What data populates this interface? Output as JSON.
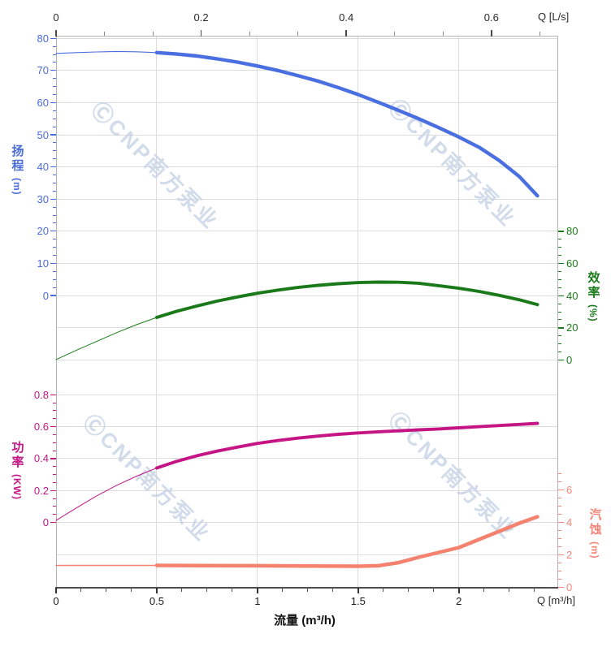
{
  "watermark": {
    "text": "ⒸCNP南方泵业",
    "color": "#c6d3e6"
  },
  "axes": {
    "flow_top": {
      "unit_label": "Q [L/s]",
      "tick_labels": [
        "0",
        "0.2",
        "0.4",
        "0.6"
      ],
      "tick_values": [
        0,
        0.2,
        0.4,
        0.6
      ],
      "max": 0.69,
      "color": "#2b2b2b"
    },
    "flow_bottom": {
      "unit_label": "Q [m³/h]",
      "axis_title": "流量 (m³/h)",
      "tick_labels": [
        "0",
        "0.5",
        "1",
        "1.5",
        "2"
      ],
      "tick_values": [
        0,
        0.5,
        1,
        1.5,
        2
      ],
      "max": 2.49,
      "color": "#1a1a1a"
    },
    "head": {
      "title": "扬程",
      "unit": "(m)",
      "color": "#4a6bdb",
      "tick_labels": [
        "80",
        "70",
        "60",
        "50",
        "40",
        "30",
        "20",
        "10",
        "0"
      ],
      "tick_values": [
        80,
        70,
        60,
        50,
        40,
        30,
        20,
        10,
        0
      ],
      "range": [
        0,
        80
      ]
    },
    "efficiency": {
      "title": "效率",
      "unit": "(%)",
      "color": "#1a7a1a",
      "tick_labels": [
        "80",
        "60",
        "40",
        "20",
        "0"
      ],
      "tick_values": [
        80,
        60,
        40,
        20,
        0
      ],
      "range": [
        0,
        80
      ]
    },
    "power": {
      "title": "功率",
      "unit": "(KW)",
      "color": "#c51585",
      "tick_labels": [
        "0.8",
        "0.6",
        "0.4",
        "0.2",
        "0"
      ],
      "tick_values": [
        0.8,
        0.6,
        0.4,
        0.2,
        0
      ],
      "range": [
        0,
        0.8
      ]
    },
    "npsh": {
      "title": "汽蚀",
      "unit": "(m)",
      "color": "#f48678",
      "tick_labels": [
        "6",
        "4",
        "2",
        "0"
      ],
      "tick_values": [
        6,
        4,
        2,
        0
      ],
      "range": [
        0,
        6
      ]
    }
  },
  "chart_data": {
    "type": "line",
    "title": "",
    "xlabel": "流量 (m³/h)",
    "x_range": [
      0,
      2.49
    ],
    "x_secondary_unit": "Q [L/s]",
    "x_secondary_range": [
      0,
      0.69
    ],
    "grid": true,
    "series": [
      {
        "name": "扬程 (m)",
        "axis": "head",
        "unit": "m",
        "color": "#4a6fe0",
        "thin_until": 0.5,
        "points": [
          [
            0,
            75.3
          ],
          [
            0.1,
            75.55
          ],
          [
            0.2,
            75.75
          ],
          [
            0.3,
            75.9
          ],
          [
            0.4,
            75.8
          ],
          [
            0.5,
            75.55
          ],
          [
            0.6,
            75.1
          ],
          [
            0.7,
            74.5
          ],
          [
            0.8,
            73.6
          ],
          [
            0.9,
            72.6
          ],
          [
            1.0,
            71.4
          ],
          [
            1.1,
            70.0
          ],
          [
            1.2,
            68.4
          ],
          [
            1.3,
            66.7
          ],
          [
            1.4,
            64.7
          ],
          [
            1.5,
            62.5
          ],
          [
            1.6,
            60.1
          ],
          [
            1.7,
            57.6
          ],
          [
            1.8,
            55.0
          ],
          [
            1.9,
            52.2
          ],
          [
            2.0,
            49.3
          ],
          [
            2.1,
            46.1
          ],
          [
            2.2,
            42.0
          ],
          [
            2.3,
            37.0
          ],
          [
            2.39,
            31.0
          ]
        ]
      },
      {
        "name": "效率 (%)",
        "axis": "efficiency",
        "unit": "%",
        "color": "#1a7a1a",
        "thin_until": 0.5,
        "points": [
          [
            0,
            0.3
          ],
          [
            0.1,
            6.0
          ],
          [
            0.2,
            11.5
          ],
          [
            0.3,
            17.0
          ],
          [
            0.4,
            22.0
          ],
          [
            0.5,
            26.5
          ],
          [
            0.6,
            30.3
          ],
          [
            0.7,
            33.6
          ],
          [
            0.8,
            36.6
          ],
          [
            0.9,
            39.2
          ],
          [
            1.0,
            41.5
          ],
          [
            1.1,
            43.4
          ],
          [
            1.2,
            45.1
          ],
          [
            1.3,
            46.4
          ],
          [
            1.4,
            47.4
          ],
          [
            1.5,
            48.1
          ],
          [
            1.6,
            48.4
          ],
          [
            1.7,
            48.3
          ],
          [
            1.8,
            47.7
          ],
          [
            1.9,
            46.2
          ],
          [
            2.0,
            44.6
          ],
          [
            2.1,
            42.6
          ],
          [
            2.2,
            40.2
          ],
          [
            2.3,
            37.4
          ],
          [
            2.39,
            34.4
          ]
        ]
      },
      {
        "name": "功率 (KW)",
        "axis": "power",
        "unit": "KW",
        "color": "#c51585",
        "thin_until": 0.5,
        "points": [
          [
            0,
            0.012
          ],
          [
            0.1,
            0.09
          ],
          [
            0.2,
            0.165
          ],
          [
            0.3,
            0.232
          ],
          [
            0.4,
            0.29
          ],
          [
            0.5,
            0.341
          ],
          [
            0.6,
            0.383
          ],
          [
            0.7,
            0.418
          ],
          [
            0.8,
            0.447
          ],
          [
            0.9,
            0.472
          ],
          [
            1.0,
            0.495
          ],
          [
            1.1,
            0.513
          ],
          [
            1.2,
            0.528
          ],
          [
            1.3,
            0.541
          ],
          [
            1.4,
            0.552
          ],
          [
            1.5,
            0.561
          ],
          [
            1.6,
            0.568
          ],
          [
            1.7,
            0.574
          ],
          [
            1.8,
            0.58
          ],
          [
            1.9,
            0.586
          ],
          [
            2.0,
            0.593
          ],
          [
            2.1,
            0.6
          ],
          [
            2.2,
            0.607
          ],
          [
            2.3,
            0.614
          ],
          [
            2.39,
            0.621
          ]
        ]
      },
      {
        "name": "汽蚀 (m)",
        "axis": "npsh",
        "unit": "m",
        "color": "#f4826f",
        "thin_until": 0.5,
        "points": [
          [
            0,
            1.35
          ],
          [
            0.25,
            1.35
          ],
          [
            0.5,
            1.35
          ],
          [
            0.75,
            1.34
          ],
          [
            1.0,
            1.33
          ],
          [
            1.25,
            1.31
          ],
          [
            1.5,
            1.3
          ],
          [
            1.6,
            1.33
          ],
          [
            1.7,
            1.52
          ],
          [
            1.8,
            1.85
          ],
          [
            1.9,
            2.15
          ],
          [
            2.0,
            2.45
          ],
          [
            2.1,
            2.95
          ],
          [
            2.2,
            3.45
          ],
          [
            2.3,
            3.95
          ],
          [
            2.39,
            4.35
          ]
        ]
      }
    ]
  }
}
